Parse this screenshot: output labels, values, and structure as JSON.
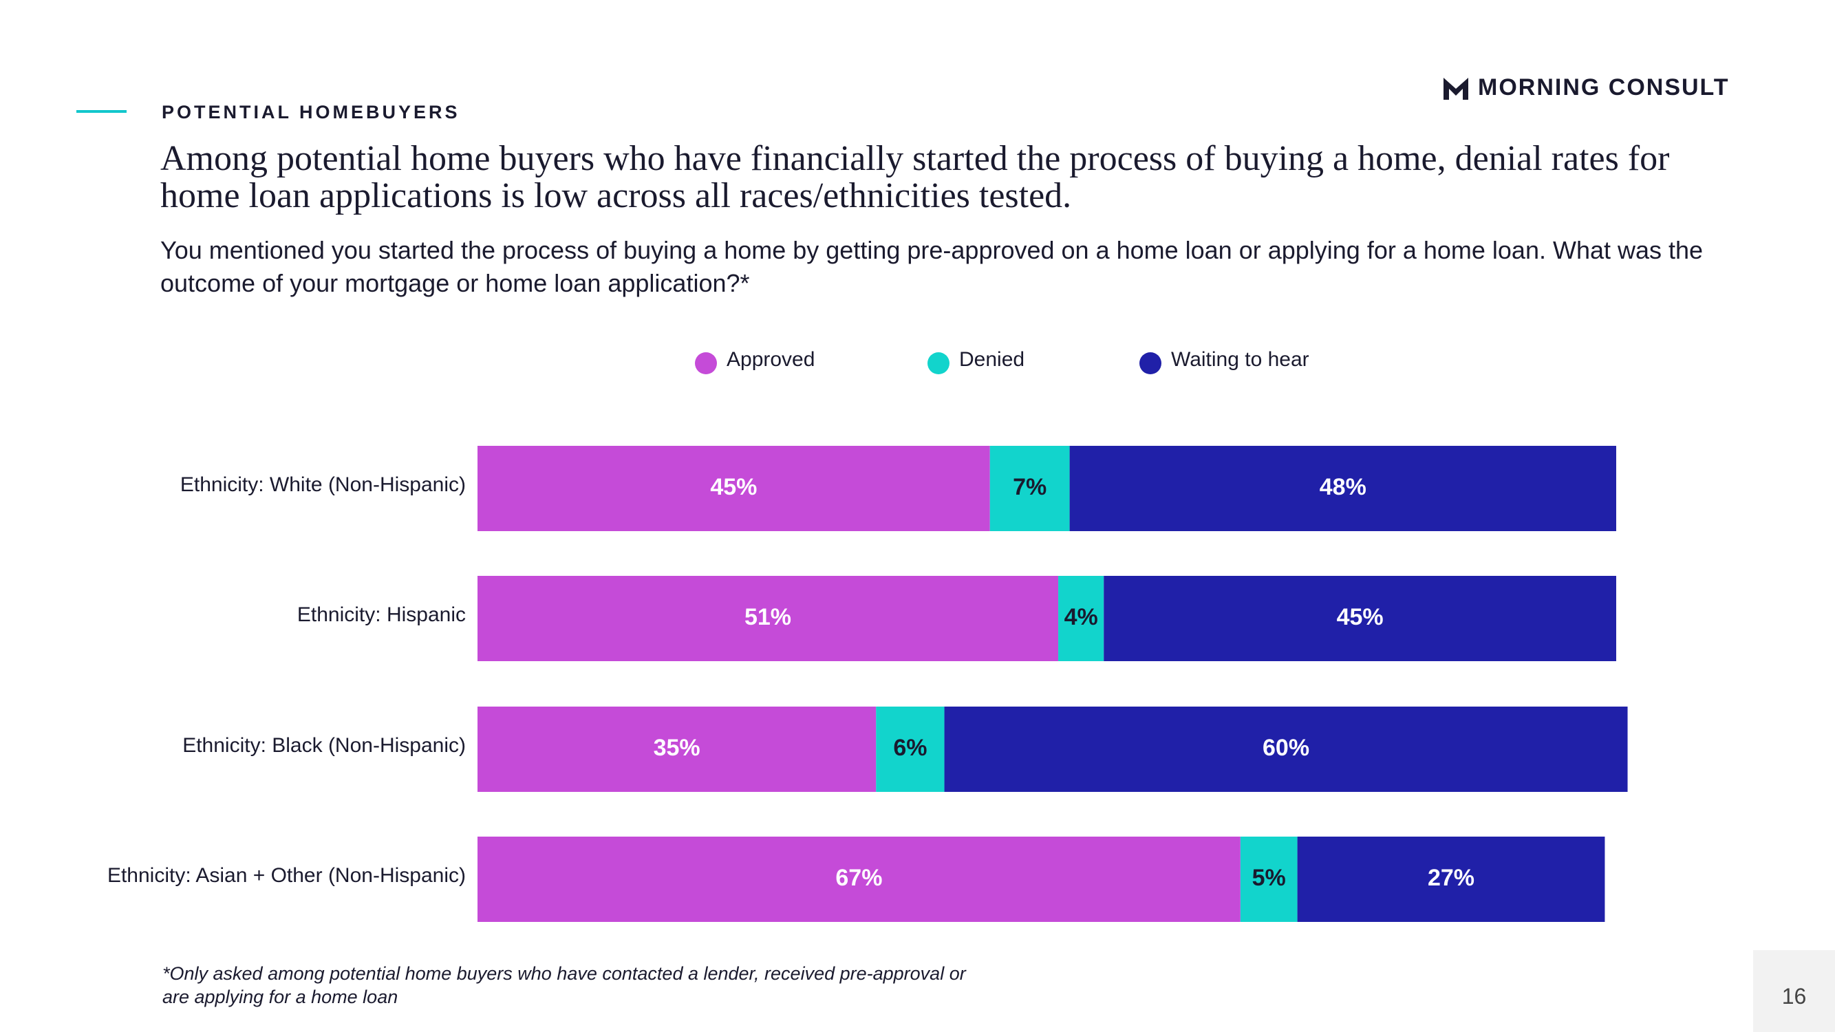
{
  "header": {
    "section": "POTENTIAL HOMEBUYERS",
    "brand": "MORNING CONSULT"
  },
  "chart_data": {
    "type": "stacked-bar-horizontal",
    "title": "Among potential home buyers who have financially started the process of buying a home, denial rates for home loan applications is low across all races/ethnicities tested.",
    "subtitle": "You mentioned you started the process of buying a home by getting pre-approved on a home loan or applying for a home loan. What was the outcome of your mortgage or home loan application?*",
    "categories": [
      "Ethnicity: White (Non-Hispanic)",
      "Ethnicity: Hispanic",
      "Ethnicity: Black (Non-Hispanic)",
      "Ethnicity: Asian + Other (Non-Hispanic)"
    ],
    "series": [
      {
        "name": "Approved",
        "color": "#c54bd8",
        "values": [
          45,
          51,
          35,
          67
        ],
        "value_labels": [
          "45%",
          "51%",
          "35%",
          "67%"
        ]
      },
      {
        "name": "Denied",
        "color": "#12d4cc",
        "values": [
          7,
          4,
          6,
          5
        ],
        "value_labels": [
          "7%",
          "4%",
          "6%",
          "5%"
        ]
      },
      {
        "name": "Waiting to hear",
        "color": "#2020a8",
        "values": [
          48,
          45,
          60,
          27
        ],
        "value_labels": [
          "48%",
          "45%",
          "60%",
          "27%"
        ]
      }
    ],
    "xlim": [
      0,
      100
    ],
    "footnote": "*Only asked among potential home buyers who have contacted a lender, received pre-approval or are applying for a home loan"
  },
  "page_number": "16"
}
